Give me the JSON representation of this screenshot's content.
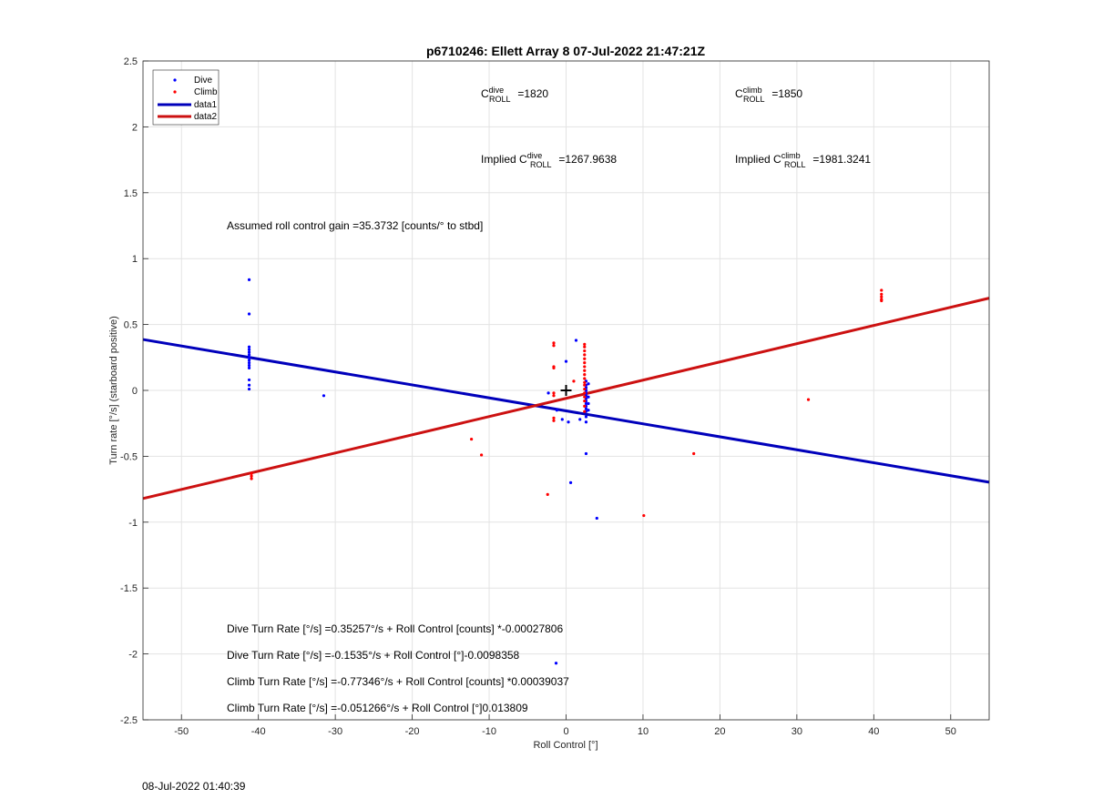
{
  "chart_data": {
    "type": "scatter",
    "title": "p6710246: Ellett Array 8 07-Jul-2022 21:47:21Z",
    "xlabel": "Roll Control [°]",
    "ylabel": "Turn rate [°/s] (starboard positive)",
    "xlim": [
      -55,
      55
    ],
    "ylim": [
      -2.5,
      2.5
    ],
    "xticks": [
      -50,
      -40,
      -30,
      -20,
      -10,
      0,
      10,
      20,
      30,
      40,
      50
    ],
    "yticks": [
      -2.5,
      -2,
      -1.5,
      -1,
      -0.5,
      0,
      0.5,
      1,
      1.5,
      2,
      2.5
    ],
    "ytick_labels": [
      "-2.5",
      "-2",
      "-1.5",
      "-1",
      "-0.5",
      "0",
      "0.5",
      "1",
      "1.5",
      "2",
      "2.5"
    ],
    "grid": true,
    "legend_position": "top-left",
    "legend": [
      "Dive",
      "Climb",
      "data1",
      "data2"
    ],
    "colors": {
      "dive": "#0000ff",
      "climb": "#ff0000",
      "data1": "#0000bb",
      "data2": "#cc1111",
      "center_marker": "#000000"
    },
    "series": [
      {
        "name": "Dive",
        "kind": "scatter",
        "points": [
          [
            -41.2,
            0.84
          ],
          [
            -41.2,
            0.58
          ],
          [
            -41.2,
            0.33
          ],
          [
            -41.2,
            0.31
          ],
          [
            -41.2,
            0.29
          ],
          [
            -41.2,
            0.27
          ],
          [
            -41.2,
            0.25
          ],
          [
            -41.2,
            0.23
          ],
          [
            -41.2,
            0.21
          ],
          [
            -41.2,
            0.19
          ],
          [
            -41.2,
            0.17
          ],
          [
            -41.2,
            0.08
          ],
          [
            -41.2,
            0.04
          ],
          [
            -41.2,
            0.01
          ],
          [
            -31.5,
            -0.04
          ],
          [
            1.3,
            0.38
          ],
          [
            0.0,
            0.22
          ],
          [
            -2.3,
            -0.02
          ],
          [
            -1.2,
            -0.15
          ],
          [
            -0.5,
            -0.22
          ],
          [
            0.3,
            -0.24
          ],
          [
            1.8,
            -0.22
          ],
          [
            0.6,
            -0.7
          ],
          [
            4.0,
            -0.97
          ],
          [
            -1.3,
            -2.07
          ],
          [
            2.6,
            0.07
          ],
          [
            2.6,
            0.04
          ],
          [
            2.6,
            0.02
          ],
          [
            2.6,
            0.0
          ],
          [
            2.6,
            -0.02
          ],
          [
            2.6,
            -0.04
          ],
          [
            2.6,
            -0.06
          ],
          [
            2.6,
            -0.08
          ],
          [
            2.6,
            -0.1
          ],
          [
            2.6,
            -0.12
          ],
          [
            2.6,
            -0.14
          ],
          [
            2.6,
            -0.16
          ],
          [
            2.6,
            -0.2
          ],
          [
            2.6,
            -0.24
          ],
          [
            2.6,
            -0.48
          ],
          [
            2.9,
            0.05
          ],
          [
            2.9,
            -0.05
          ],
          [
            2.9,
            -0.1
          ],
          [
            2.9,
            -0.15
          ]
        ]
      },
      {
        "name": "Climb",
        "kind": "scatter",
        "points": [
          [
            41.0,
            0.76
          ],
          [
            41.0,
            0.73
          ],
          [
            41.0,
            0.71
          ],
          [
            41.0,
            0.69
          ],
          [
            41.0,
            0.68
          ],
          [
            31.5,
            -0.07
          ],
          [
            16.6,
            -0.48
          ],
          [
            10.1,
            -0.95
          ],
          [
            -11.0,
            -0.49
          ],
          [
            -12.3,
            -0.37
          ],
          [
            -2.4,
            -0.79
          ],
          [
            -1.6,
            0.36
          ],
          [
            -1.6,
            0.34
          ],
          [
            -1.6,
            0.18
          ],
          [
            -1.6,
            0.17
          ],
          [
            -1.6,
            -0.02
          ],
          [
            -1.6,
            -0.04
          ],
          [
            -1.6,
            -0.21
          ],
          [
            -1.6,
            -0.23
          ],
          [
            1.0,
            0.07
          ],
          [
            -40.9,
            -0.63
          ],
          [
            -40.9,
            -0.65
          ],
          [
            -40.9,
            -0.67
          ],
          [
            2.4,
            0.35
          ],
          [
            2.4,
            0.33
          ],
          [
            2.4,
            0.3
          ],
          [
            2.4,
            0.27
          ],
          [
            2.4,
            0.24
          ],
          [
            2.4,
            0.21
          ],
          [
            2.4,
            0.18
          ],
          [
            2.4,
            0.15
          ],
          [
            2.4,
            0.12
          ],
          [
            2.4,
            0.09
          ],
          [
            2.4,
            0.06
          ],
          [
            2.4,
            0.04
          ],
          [
            2.4,
            0.01
          ],
          [
            2.4,
            -0.02
          ],
          [
            2.4,
            -0.05
          ],
          [
            2.4,
            -0.08
          ],
          [
            2.4,
            -0.12
          ],
          [
            2.4,
            -0.16
          ]
        ]
      },
      {
        "name": "data1",
        "kind": "line",
        "x": [
          -55,
          55
        ],
        "y": [
          0.3863,
          -0.6967
        ]
      },
      {
        "name": "data2",
        "kind": "line",
        "x": [
          -55,
          55
        ],
        "y": [
          -0.8207,
          0.7
        ]
      }
    ],
    "center_marker": [
      0,
      0
    ],
    "annotations": {
      "c_dive_base": "C",
      "c_dive_sup": "dive",
      "c_dive_sub": "ROLL",
      "c_dive_val": " =1820",
      "c_climb_base": "C",
      "c_climb_sup": "climb",
      "c_climb_sub": "ROLL",
      "c_climb_val": " =1850",
      "imp_dive_pre": "Implied C",
      "imp_dive_sup": "dive",
      "imp_dive_sub": "ROLL",
      "imp_dive_val": " =1267.9638",
      "imp_climb_pre": "Implied C",
      "imp_climb_sup": "climb",
      "imp_climb_sub": "ROLL",
      "imp_climb_val": " =1981.3241",
      "gain": "Assumed roll control gain =35.3732 [counts/° to stbd]",
      "eq1": "Dive Turn Rate [°/s] =0.35257°/s + Roll Control [counts] *-0.00027806",
      "eq2": "Dive Turn Rate [°/s] =-0.1535°/s + Roll Control [°]-0.0098358",
      "eq3": "Climb Turn Rate [°/s] =-0.77346°/s + Roll Control [counts] *0.00039037",
      "eq4": "Climb Turn Rate [°/s] =-0.051266°/s + Roll Control [°]0.013809"
    }
  },
  "footer_timestamp": "08-Jul-2022 01:40:39"
}
